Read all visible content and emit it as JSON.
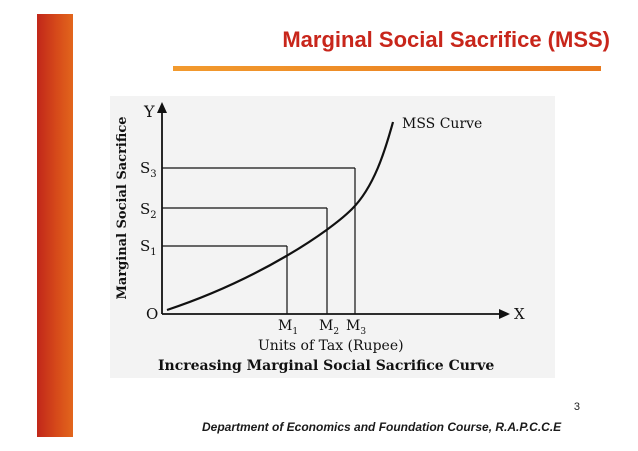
{
  "slide": {
    "title": "Marginal Social Sacrifice (MSS)",
    "number": "3",
    "footer": "Department of Economics and Foundation Course, R.A.P.C.C.E",
    "colors": {
      "accent": "#c8261b",
      "bar": "#d64a1a",
      "rule": "#f29a2e"
    }
  },
  "diagram": {
    "y_axis_letter": "Y",
    "x_axis_letter": "X",
    "origin": "O",
    "y_axis_title": "Marginal Social Sacrifice",
    "x_axis_title": "Units of Tax (Rupee)",
    "curve_label": "MSS Curve",
    "caption": "Increasing Marginal Social Sacrifice Curve",
    "s_labels": [
      "S",
      "S",
      "S"
    ],
    "s_subs": [
      "1",
      "2",
      "3"
    ],
    "m_labels": [
      "M",
      "M",
      "M"
    ],
    "m_subs": [
      "1",
      "2",
      "3"
    ]
  }
}
